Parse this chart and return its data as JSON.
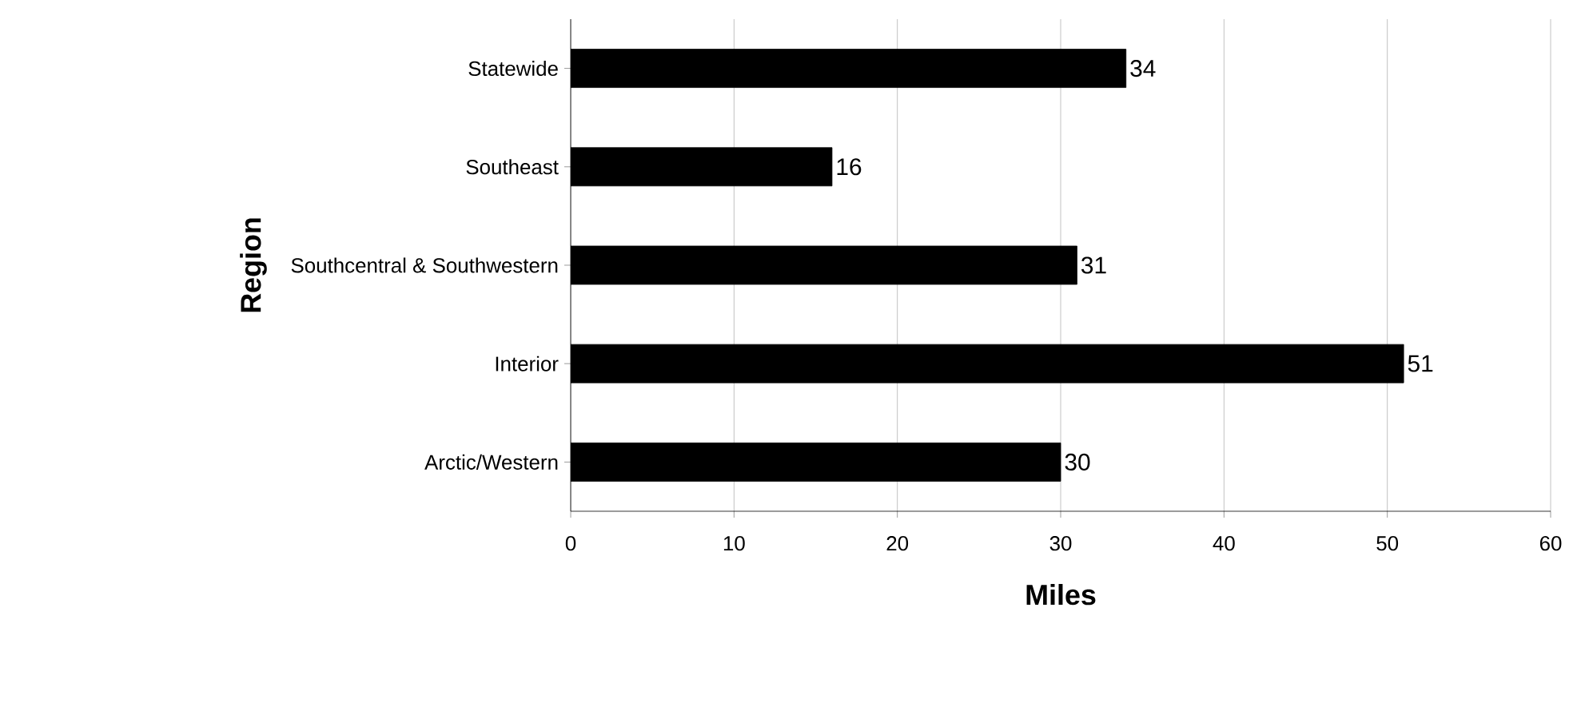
{
  "chart_data": {
    "type": "bar",
    "orientation": "horizontal",
    "categories": [
      "Statewide",
      "Southeast",
      "Southcentral & Southwestern",
      "Interior",
      "Arctic/Western"
    ],
    "values": [
      34,
      16,
      31,
      51,
      30
    ],
    "color": "#000000",
    "xlabel": "Miles",
    "ylabel": "Region",
    "xlim": [
      0,
      60
    ],
    "xticks": [
      0,
      10,
      20,
      30,
      40,
      50,
      60
    ],
    "grid": "x",
    "data_labels": true
  }
}
